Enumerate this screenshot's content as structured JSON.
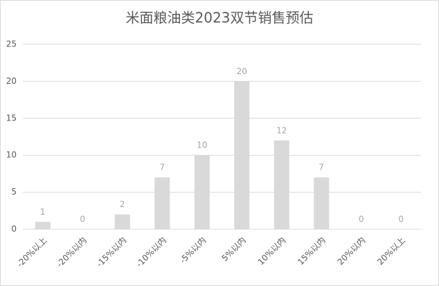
{
  "chart_data": {
    "type": "bar",
    "title": "米面粮油类2023双节销售预估",
    "categories": [
      "-20%以上",
      "-20%以内",
      "-15%以内",
      "-10%以内",
      "-5%以内",
      "5%以内",
      "10%以内",
      "15%以内",
      "20%以内",
      "20%以上"
    ],
    "values": [
      1,
      0,
      2,
      7,
      10,
      20,
      12,
      7,
      0,
      0
    ],
    "color": "#d9d9d9",
    "ylim": [
      0,
      25
    ],
    "yticks": [
      0,
      5,
      10,
      15,
      20,
      25
    ],
    "grid": true
  }
}
